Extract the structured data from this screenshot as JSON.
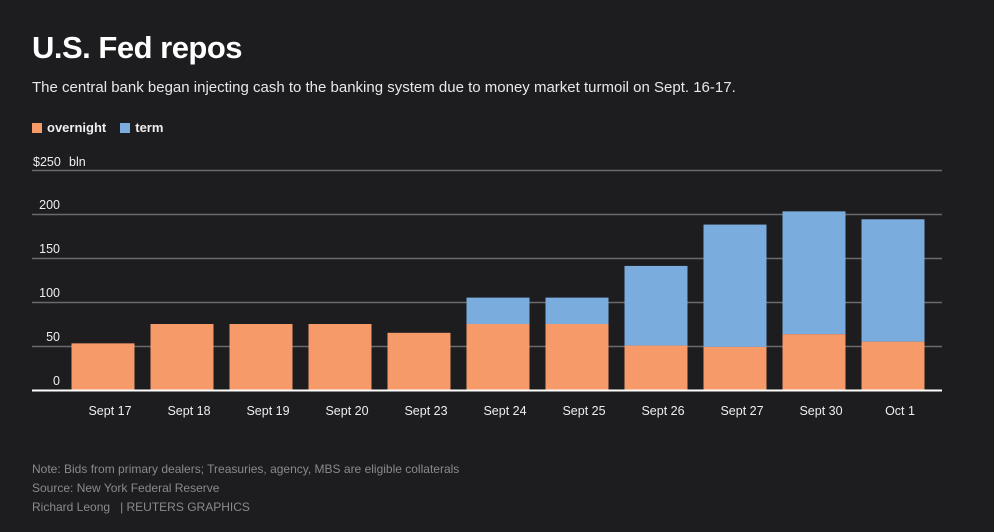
{
  "header": {
    "title": "U.S. Fed repos",
    "subtitle": "The central bank began injecting cash to the banking system due to money market turmoil on Sept. 16-17."
  },
  "legend": [
    {
      "label": "overnight",
      "color": "#f79a6a"
    },
    {
      "label": "term",
      "color": "#7aacdd"
    }
  ],
  "axis": {
    "top_label": "$250",
    "unit": "bln",
    "ticks": [
      "0",
      "50",
      "100",
      "150",
      "200"
    ]
  },
  "chart_data": {
    "type": "bar",
    "stacked": true,
    "categories": [
      "Sept 17",
      "Sept 18",
      "Sept 19",
      "Sept 20",
      "Sept 23",
      "Sept 24",
      "Sept 25",
      "Sept 26",
      "Sept 27",
      "Sept 30",
      "Oct 1"
    ],
    "series": [
      {
        "name": "overnight",
        "color": "#f79a6a",
        "values": [
          53,
          75,
          75,
          75,
          65,
          75,
          75,
          50.5,
          49,
          63.5,
          55
        ]
      },
      {
        "name": "term",
        "color": "#7aacdd",
        "values": [
          0,
          0,
          0,
          0,
          0,
          30,
          30,
          90.5,
          139,
          139.5,
          139
        ]
      }
    ],
    "ylim": [
      0,
      250
    ],
    "yticks": [
      0,
      50,
      100,
      150,
      200,
      250
    ],
    "ylabel": "bln",
    "grid": true,
    "legend_position": "top-left"
  },
  "footer": {
    "note": "Note: Bids from primary dealers; Treasuries, agency, MBS are eligible collaterals",
    "source": "Source: New York Federal Reserve",
    "author": "Richard Leong",
    "credit": "| REUTERS GRAPHICS"
  }
}
